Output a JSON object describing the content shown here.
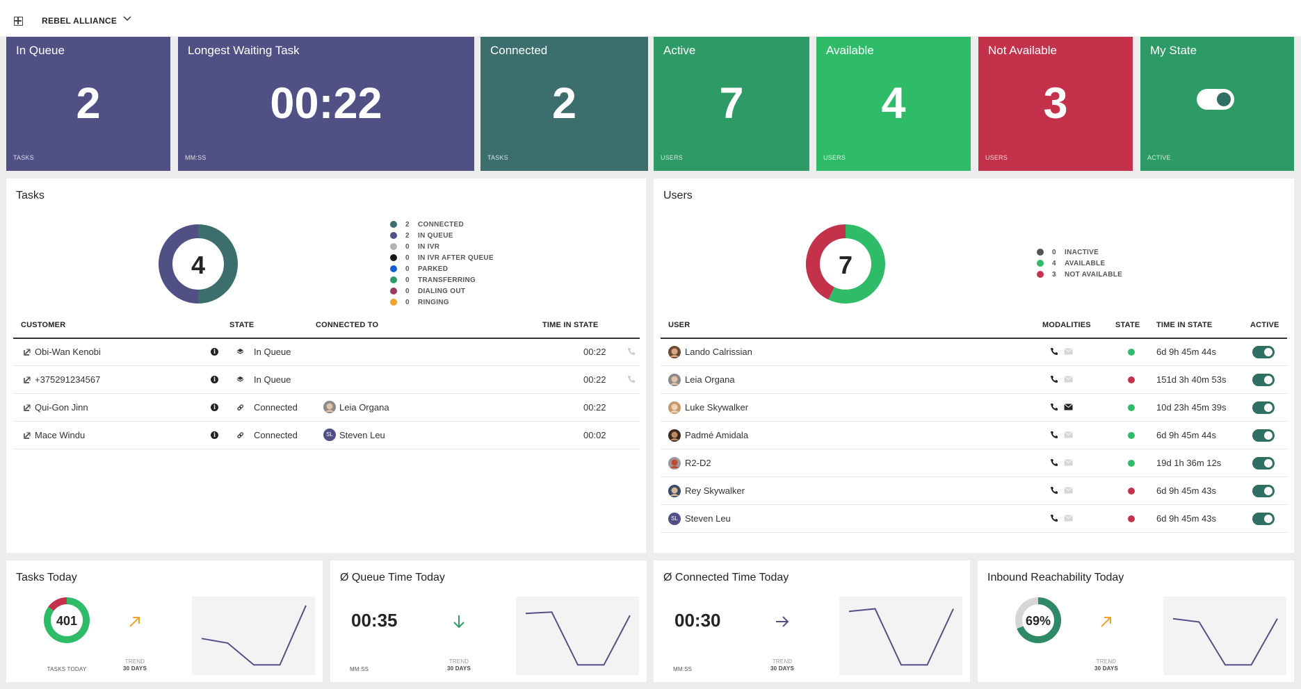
{
  "header": {
    "tenant_name": "REBEL ALLIANCE"
  },
  "kpis": [
    {
      "title": "In Queue",
      "value": "2",
      "unit": "TASKS",
      "color": "#515085"
    },
    {
      "title": "Longest Waiting Task",
      "value": "00:22",
      "unit": "MM:SS",
      "color": "#515085"
    },
    {
      "title": "Connected",
      "value": "2",
      "unit": "TASKS",
      "color": "#3b6e6c"
    },
    {
      "title": "Active",
      "value": "7",
      "unit": "USERS",
      "color": "#2e9a66"
    },
    {
      "title": "Available",
      "value": "4",
      "unit": "USERS",
      "color": "#2fbc69"
    },
    {
      "title": "Not Available",
      "value": "3",
      "unit": "USERS",
      "color": "#c4314b"
    },
    {
      "title": "My State",
      "value": "",
      "unit": "ACTIVE",
      "color": "#2e9a66",
      "toggle_on": true
    }
  ],
  "tasks_panel": {
    "title": "Tasks",
    "total": "4",
    "donut": [
      {
        "value": 2,
        "color": "#3b6e6c"
      },
      {
        "value": 2,
        "color": "#515085"
      }
    ],
    "legend": [
      {
        "count": "2",
        "label": "CONNECTED",
        "color": "#3b6e6c"
      },
      {
        "count": "2",
        "label": "IN QUEUE",
        "color": "#515085"
      },
      {
        "count": "0",
        "label": "IN IVR",
        "color": "#b3b3b3"
      },
      {
        "count": "0",
        "label": "IN IVR AFTER QUEUE",
        "color": "#1a1a1a"
      },
      {
        "count": "0",
        "label": "PARKED",
        "color": "#0f5fd6"
      },
      {
        "count": "0",
        "label": "TRANSFERRING",
        "color": "#2e9a66"
      },
      {
        "count": "0",
        "label": "DIALING OUT",
        "color": "#9a3a63"
      },
      {
        "count": "0",
        "label": "RINGING",
        "color": "#f2a229"
      }
    ],
    "columns": {
      "customer": "CUSTOMER",
      "state": "STATE",
      "connected_to": "CONNECTED TO",
      "time_in_state": "TIME IN STATE"
    },
    "rows": [
      {
        "customer": "Obi-Wan Kenobi",
        "state": "In Queue",
        "connected_to": "",
        "time": "00:22",
        "state_icon": "stack-icon",
        "avatar": ""
      },
      {
        "customer": "+375291234567",
        "state": "In Queue",
        "connected_to": "",
        "time": "00:22",
        "state_icon": "stack-icon",
        "avatar": ""
      },
      {
        "customer": "Qui-Gon Jinn",
        "state": "Connected",
        "connected_to": "Leia Organa",
        "time": "00:22",
        "state_icon": "link-icon",
        "avatar": "photo"
      },
      {
        "customer": "Mace Windu",
        "state": "Connected",
        "connected_to": "Steven Leu",
        "time": "00:02",
        "state_icon": "link-icon",
        "avatar": "SL"
      }
    ]
  },
  "users_panel": {
    "title": "Users",
    "total": "7",
    "donut": [
      {
        "value": 4,
        "color": "#2fbc69"
      },
      {
        "value": 3,
        "color": "#c4314b"
      }
    ],
    "legend": [
      {
        "count": "0",
        "label": "INACTIVE",
        "color": "#555555"
      },
      {
        "count": "4",
        "label": "AVAILABLE",
        "color": "#2fbc69"
      },
      {
        "count": "3",
        "label": "NOT AVAILABLE",
        "color": "#c4314b"
      }
    ],
    "columns": {
      "user": "USER",
      "modalities": "MODALITIES",
      "state": "STATE",
      "time_in_state": "TIME IN STATE",
      "active": "ACTIVE"
    },
    "rows": [
      {
        "name": "Lando Calrissian",
        "state_color": "#2fbc69",
        "time": "6d 9h 45m 44s",
        "mail_active": false,
        "avatar": "photo"
      },
      {
        "name": "Leia Organa",
        "state_color": "#c4314b",
        "time": "151d 3h 40m 53s",
        "mail_active": false,
        "avatar": "photo"
      },
      {
        "name": "Luke Skywalker",
        "state_color": "#2fbc69",
        "time": "10d 23h 45m 39s",
        "mail_active": true,
        "avatar": "photo"
      },
      {
        "name": "Padmé Amidala",
        "state_color": "#2fbc69",
        "time": "6d 9h 45m 44s",
        "mail_active": false,
        "avatar": "photo"
      },
      {
        "name": "R2-D2",
        "state_color": "#2fbc69",
        "time": "19d 1h 36m 12s",
        "mail_active": false,
        "avatar": "photo"
      },
      {
        "name": "Rey Skywalker",
        "state_color": "#c4314b",
        "time": "6d 9h 45m 43s",
        "mail_active": false,
        "avatar": "photo"
      },
      {
        "name": "Steven Leu",
        "state_color": "#c4314b",
        "time": "6d 9h 45m 43s",
        "mail_active": false,
        "avatar": "SL"
      }
    ]
  },
  "bottom_cards": [
    {
      "title": "Tasks Today",
      "value": "401",
      "sub": "TASKS TODAY",
      "trend_dir": "up",
      "trend_color": "#f2a229",
      "trend_l1": "TREND",
      "trend_l2": "30 DAYS",
      "donut": [
        {
          "value": 85,
          "color": "#2fbc69"
        },
        {
          "value": 15,
          "color": "#c4314b"
        }
      ],
      "spark": [
        0.55,
        0.62,
        0.95,
        0.95,
        0.05
      ]
    },
    {
      "title": "Ø Queue Time Today",
      "value": "00:35",
      "sub": "MM:SS",
      "trend_dir": "down",
      "trend_color": "#2e9a66",
      "trend_l1": "TREND",
      "trend_l2": "30 DAYS",
      "spark": [
        0.17,
        0.15,
        0.95,
        0.95,
        0.2
      ]
    },
    {
      "title": "Ø Connected Time Today",
      "value": "00:30",
      "sub": "MM:SS",
      "trend_dir": "right",
      "trend_color": "#515085",
      "trend_l1": "TREND",
      "trend_l2": "30 DAYS",
      "spark": [
        0.14,
        0.1,
        0.95,
        0.95,
        0.1
      ]
    },
    {
      "title": "Inbound Reachability Today",
      "value": "69%",
      "sub": "",
      "trend_dir": "up",
      "trend_color": "#f2a229",
      "trend_l1": "TREND",
      "trend_l2": "30 DAYS",
      "donut": [
        {
          "value": 69,
          "color": "#2e8a66"
        },
        {
          "value": 31,
          "color": "#d6d6d6"
        }
      ],
      "spark": [
        0.25,
        0.3,
        0.95,
        0.95,
        0.25
      ]
    }
  ]
}
